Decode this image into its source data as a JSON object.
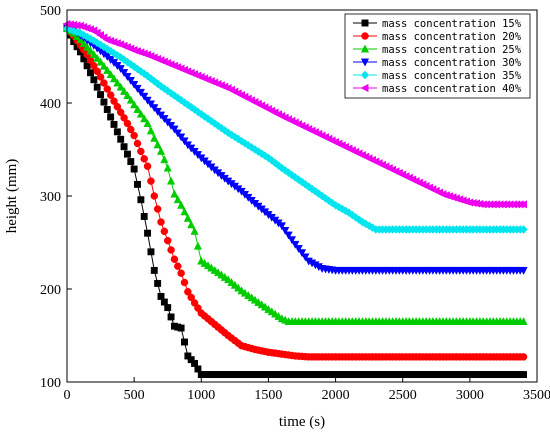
{
  "chart_data": {
    "type": "line",
    "title": "",
    "xlabel": "time (s)",
    "ylabel": "height (mm)",
    "xlim": [
      0,
      3500
    ],
    "ylim": [
      100,
      500
    ],
    "xticks": [
      0,
      500,
      1000,
      1500,
      2000,
      2500,
      3000,
      3500
    ],
    "yticks": [
      100,
      200,
      300,
      400,
      500
    ],
    "grid": false,
    "legend_position": "top-right",
    "series": [
      {
        "name": "mass concentration 15%",
        "color": "#000000",
        "marker": "square",
        "x": [
          0,
          50,
          100,
          150,
          200,
          250,
          300,
          350,
          400,
          450,
          500,
          550,
          600,
          650,
          700,
          750,
          800,
          850,
          900,
          950,
          1000,
          1100,
          1500,
          2000,
          2500,
          3000,
          3400
        ],
        "y": [
          480,
          466,
          455,
          440,
          425,
          409,
          393,
          377,
          361,
          345,
          329,
          296,
          260,
          220,
          192,
          180,
          160,
          158,
          128,
          120,
          108,
          108,
          108,
          108,
          108,
          108,
          108
        ]
      },
      {
        "name": "mass concentration 20%",
        "color": "#ff0000",
        "marker": "circle",
        "x": [
          0,
          50,
          100,
          150,
          200,
          250,
          300,
          350,
          400,
          450,
          500,
          550,
          600,
          650,
          700,
          750,
          800,
          850,
          900,
          950,
          1000,
          1100,
          1200,
          1300,
          1400,
          1500,
          1600,
          1700,
          1800,
          2000,
          2500,
          3000,
          3400
        ],
        "y": [
          480,
          472,
          462,
          452,
          440,
          428,
          415,
          402,
          390,
          378,
          365,
          348,
          332,
          300,
          272,
          252,
          232,
          217,
          197,
          185,
          174,
          162,
          150,
          139,
          135,
          132,
          130,
          128,
          127,
          127,
          127,
          127,
          127
        ]
      },
      {
        "name": "mass concentration 25%",
        "color": "#00cc00",
        "marker": "triangle-up",
        "x": [
          0,
          50,
          100,
          150,
          200,
          250,
          300,
          350,
          400,
          450,
          500,
          550,
          600,
          650,
          700,
          750,
          800,
          850,
          900,
          950,
          1000,
          1100,
          1200,
          1300,
          1400,
          1500,
          1600,
          1650,
          2000,
          2500,
          3000,
          3400
        ],
        "y": [
          480,
          475,
          468,
          460,
          452,
          444,
          435,
          426,
          417,
          408,
          398,
          388,
          378,
          362,
          348,
          330,
          302,
          290,
          276,
          262,
          230,
          220,
          210,
          198,
          188,
          178,
          168,
          165,
          165,
          165,
          165,
          165
        ]
      },
      {
        "name": "mass concentration 30%",
        "color": "#0000ff",
        "marker": "triangle-down",
        "x": [
          0,
          100,
          200,
          300,
          400,
          500,
          600,
          700,
          800,
          900,
          1000,
          1100,
          1200,
          1300,
          1400,
          1500,
          1600,
          1700,
          1800,
          1900,
          2000,
          2100,
          2500,
          3000,
          3400
        ],
        "y": [
          482,
          473,
          462,
          450,
          437,
          420,
          403,
          387,
          372,
          355,
          341,
          328,
          316,
          305,
          292,
          280,
          268,
          248,
          230,
          222,
          220,
          220,
          220,
          220,
          220
        ]
      },
      {
        "name": "mass concentration 35%",
        "color": "#00e5ee",
        "marker": "diamond",
        "x": [
          0,
          100,
          200,
          300,
          400,
          500,
          600,
          700,
          800,
          900,
          1000,
          1100,
          1200,
          1300,
          1400,
          1500,
          1600,
          1700,
          1800,
          1900,
          2000,
          2100,
          2200,
          2300,
          2500,
          3000,
          3400
        ],
        "y": [
          480,
          475,
          467,
          458,
          449,
          439,
          429,
          418,
          408,
          398,
          388,
          378,
          368,
          359,
          350,
          341,
          330,
          320,
          310,
          300,
          290,
          282,
          272,
          264,
          264,
          264,
          264
        ]
      },
      {
        "name": "mass concentration 40%",
        "color": "#ee00ee",
        "marker": "triangle-left",
        "x": [
          0,
          100,
          200,
          300,
          400,
          500,
          600,
          700,
          800,
          900,
          1000,
          1200,
          1400,
          1600,
          1800,
          2000,
          2200,
          2400,
          2600,
          2800,
          3000,
          3100,
          3200,
          3300,
          3400
        ],
        "y": [
          485,
          483,
          478,
          468,
          463,
          457,
          452,
          446,
          440,
          434,
          428,
          416,
          401,
          386,
          372,
          358,
          344,
          330,
          316,
          302,
          293,
          291,
          291,
          291,
          291
        ]
      }
    ]
  }
}
